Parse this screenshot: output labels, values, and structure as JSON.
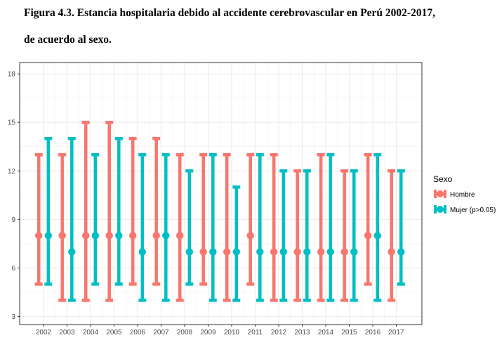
{
  "caption": {
    "line1": "Figura 4.3. Estancia hospitalaria debido al accidente cerebrovascular en Perú 2002-2017,",
    "line2": "de acuerdo al sexo."
  },
  "colors": {
    "hombre": "#F8766D",
    "mujer": "#00BFC4"
  },
  "chart_data": {
    "type": "errorbar",
    "title": "",
    "xlabel": "",
    "ylabel": "",
    "ylim": [
      2.5,
      18.7
    ],
    "yticks": [
      3,
      6,
      9,
      12,
      15,
      18
    ],
    "grid": true,
    "legend_position": "right",
    "legend_title": "Sexo",
    "categories": [
      "2002",
      "2003",
      "2004",
      "2005",
      "2006",
      "2007",
      "2008",
      "2009",
      "2010",
      "2011",
      "2012",
      "2013",
      "2014",
      "2015",
      "2016",
      "2017"
    ],
    "series": [
      {
        "name": "Hombre",
        "point": [
          8,
          8,
          8,
          8,
          8,
          8,
          8,
          7,
          7,
          8,
          7,
          7,
          7,
          7,
          8,
          7
        ],
        "low": [
          5,
          4,
          4,
          4,
          5,
          5,
          4,
          5,
          4,
          5,
          4,
          4,
          4,
          4,
          5,
          4
        ],
        "high": [
          13,
          13,
          15,
          15,
          14,
          14,
          13,
          13,
          13,
          13,
          13,
          12,
          13,
          12,
          13,
          12
        ]
      },
      {
        "name": "Mujer (p>0.05)",
        "point": [
          8,
          7,
          8,
          8,
          7,
          8,
          7,
          7,
          7,
          7,
          7,
          7,
          7,
          7,
          8,
          7
        ],
        "low": [
          5,
          4,
          5,
          5,
          4,
          4,
          5,
          4,
          4,
          4,
          4,
          4,
          4,
          4,
          4,
          5
        ],
        "high": [
          14,
          14,
          13,
          14,
          13,
          13,
          12,
          13,
          11,
          13,
          12,
          12,
          13,
          12,
          13,
          12
        ]
      }
    ]
  }
}
